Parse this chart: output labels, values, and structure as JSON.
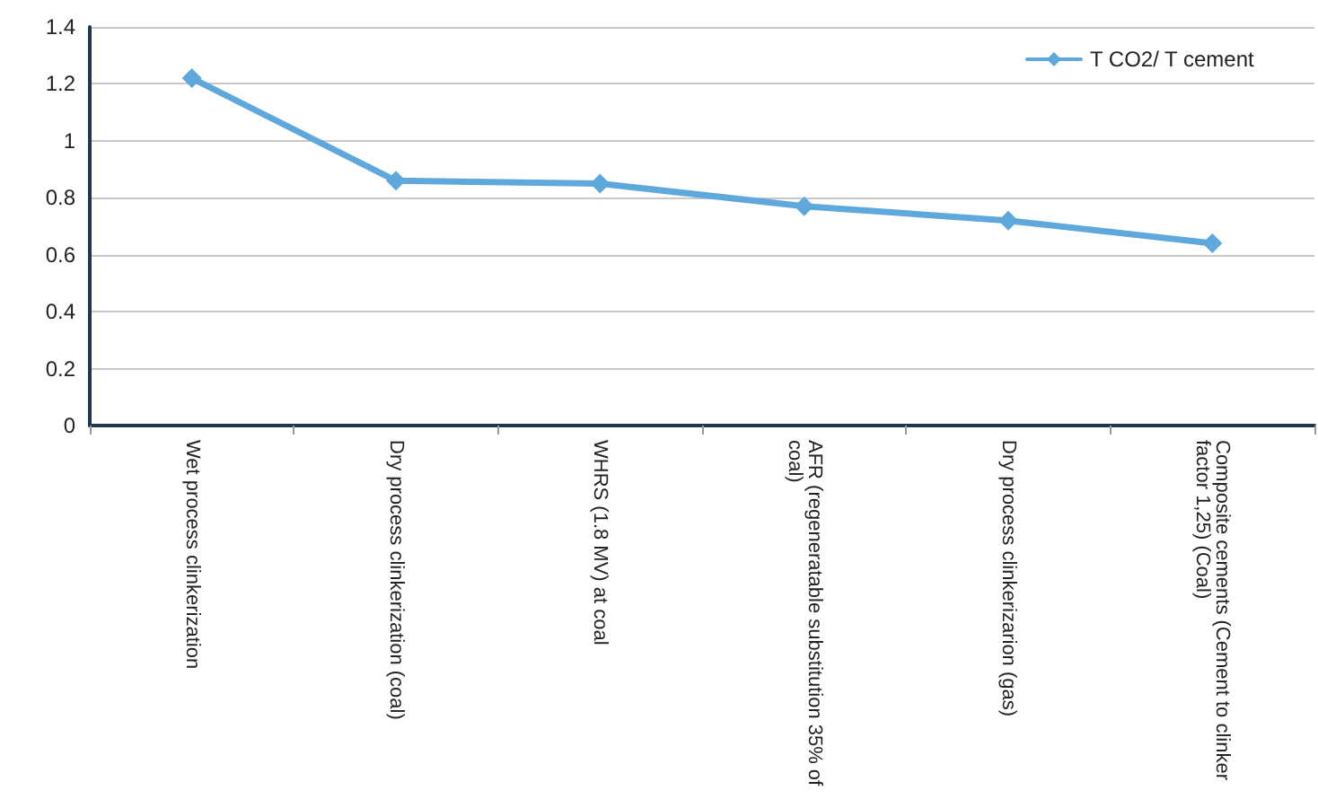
{
  "chart_data": {
    "type": "line",
    "categories": [
      "Wet process clinkerization",
      "Dry process clinkerization (coal)",
      "WHRS (1.8 MV) at coal",
      "AFR (regeneratable substitution 35% of coal)",
      "Dry process clinkerizarion (gas)",
      "Composite cements (Cement to clinker factor 1,25) (Coal)"
    ],
    "series": [
      {
        "name": "T CO2/ T cement",
        "color": "#5fa8dc",
        "values": [
          1.22,
          0.86,
          0.85,
          0.77,
          0.72,
          0.64
        ]
      }
    ],
    "ylim": [
      0,
      1.4
    ],
    "yticks": [
      0,
      0.2,
      0.4,
      0.6,
      0.8,
      1,
      1.2,
      1.4
    ],
    "grid": "y",
    "legend": "top right",
    "marker": "diamond",
    "line_style": "solid"
  }
}
